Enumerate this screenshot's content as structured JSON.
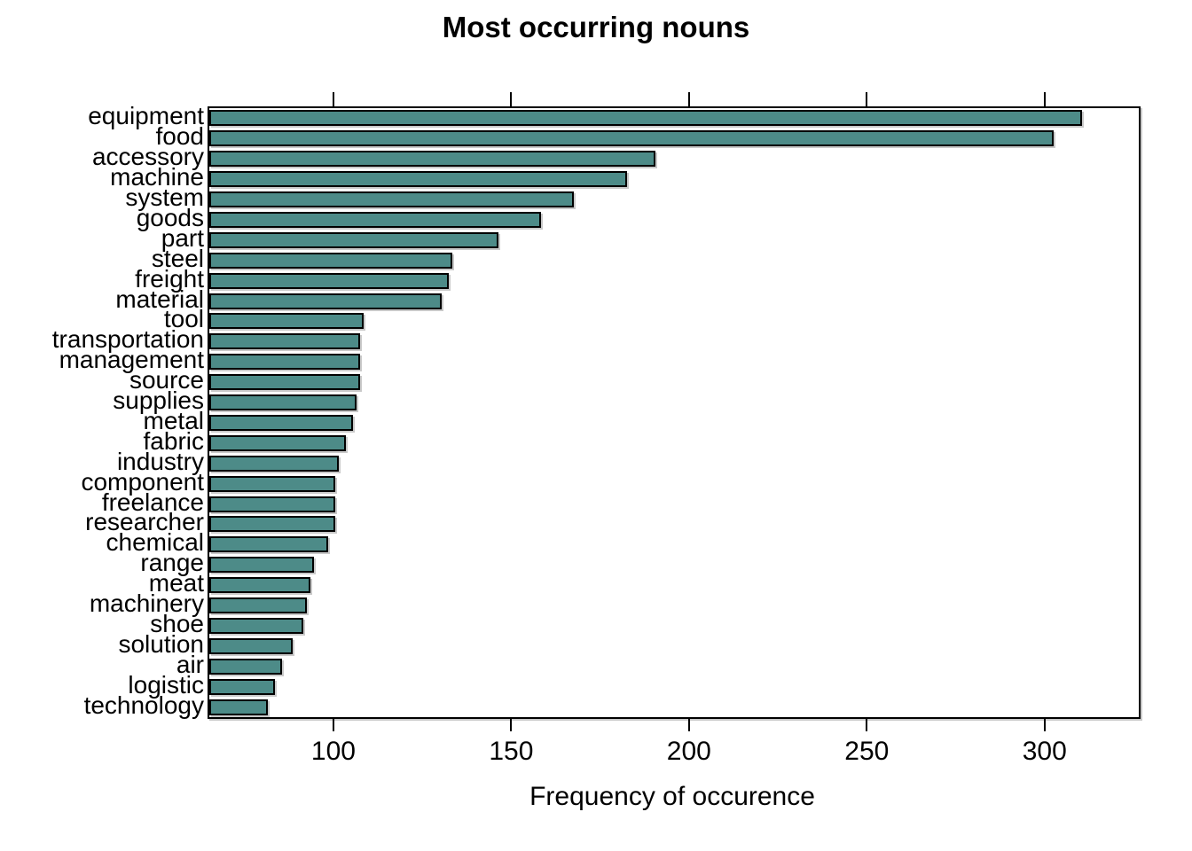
{
  "title": "Most occurring nouns",
  "chart_data": {
    "type": "bar",
    "orientation": "horizontal",
    "title": "Most occurring nouns",
    "xlabel": "Frequency of occurence",
    "ylabel": "",
    "categories": [
      "equipment",
      "food",
      "accessory",
      "machine",
      "system",
      "goods",
      "part",
      "steel",
      "freight",
      "material",
      "tool",
      "transportation",
      "management",
      "source",
      "supplies",
      "metal",
      "fabric",
      "industry",
      "component",
      "freelance",
      "researcher",
      "chemical",
      "range",
      "meat",
      "machinery",
      "shoe",
      "solution",
      "air",
      "logistic",
      "technology"
    ],
    "values": [
      310,
      302,
      190,
      182,
      167,
      158,
      146,
      133,
      132,
      130,
      108,
      107,
      107,
      107,
      106,
      105,
      103,
      101,
      100,
      100,
      100,
      98,
      94,
      93,
      92,
      91,
      88,
      85,
      83,
      81
    ],
    "xlim": [
      64.6,
      326
    ],
    "xticks": [
      100,
      150,
      200,
      250,
      300
    ],
    "grid": false,
    "bar_color": "#4D8B88",
    "bar_border_color": "#000000",
    "axis_color": "#000000",
    "background_color": "#ffffff"
  }
}
